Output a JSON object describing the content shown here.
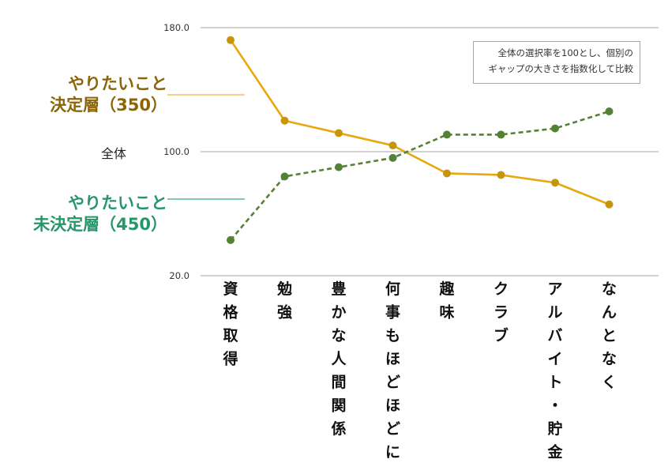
{
  "legend": {
    "decided": {
      "line1": "やりたいこと",
      "line2": "決定層（350）",
      "color": "#B88A0A"
    },
    "undecided": {
      "line1": "やりたいこと",
      "line2": "未決定層（450）",
      "color": "#548235"
    }
  },
  "overall_label": "全体",
  "note": {
    "line1": "全体の選択率を100とし、個別の",
    "line2": "ギャップの大きさを指数化して比較"
  },
  "colors": {
    "decided_text": "#8B6508",
    "undecided_text": "#27966B",
    "decided_line": "#E8A80C",
    "undecided_line": "#548235",
    "decided_marker": "#C7950A",
    "connector_decided": "#E8B547",
    "connector_undecided": "#3DAA7F",
    "grid": "#a6a6a6"
  },
  "chart_data": {
    "type": "line",
    "categories": [
      "資格取得",
      "勉強",
      "豊かな人間関係",
      "何事もほどほどに",
      "趣味",
      "クラブ",
      "アルバイト・貯金",
      "なんとなく"
    ],
    "ylim": [
      20.0,
      180.0
    ],
    "yticks": [
      "20.0",
      "100.0",
      "180.0"
    ],
    "grid": true,
    "series": [
      {
        "name": "やりたいこと決定層（350）",
        "style": "solid",
        "values": [
          172,
          120,
          112,
          104,
          86,
          85,
          80,
          66
        ]
      },
      {
        "name": "やりたいこと未決定層（450）",
        "style": "dashed",
        "values": [
          43,
          84,
          90,
          96,
          111,
          111,
          115,
          126
        ]
      }
    ]
  }
}
